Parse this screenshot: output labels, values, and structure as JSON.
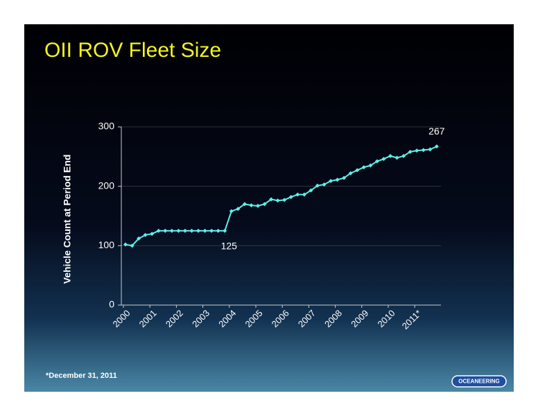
{
  "chart_data": {
    "type": "line",
    "title": "OII ROV Fleet Size",
    "y_label": "Vehicle Count at Period End",
    "footnote": "*December 31, 2011",
    "logo": "OCEANEERING",
    "categories": [
      "2000",
      null,
      null,
      null,
      "2001",
      null,
      null,
      null,
      "2002",
      null,
      null,
      null,
      "2003",
      null,
      null,
      null,
      "2004",
      null,
      null,
      null,
      "2005",
      null,
      null,
      null,
      "2006",
      null,
      null,
      null,
      "2007",
      null,
      null,
      null,
      "2008",
      null,
      null,
      null,
      "2009",
      null,
      null,
      null,
      "2010",
      null,
      null,
      null,
      "2011*",
      null,
      null,
      null
    ],
    "series": [
      {
        "name": "ROV Fleet",
        "color": "#5ff0e8",
        "values": [
          102,
          100,
          112,
          118,
          120,
          125,
          125,
          125,
          125,
          125,
          125,
          125,
          125,
          125,
          125,
          125,
          158,
          162,
          170,
          168,
          167,
          170,
          178,
          176,
          177,
          182,
          186,
          186,
          193,
          201,
          203,
          209,
          211,
          214,
          222,
          227,
          232,
          235,
          242,
          246,
          251,
          248,
          251,
          258,
          260,
          261,
          262,
          267
        ],
        "value_labels": [
          null,
          null,
          null,
          null,
          null,
          null,
          null,
          null,
          null,
          null,
          null,
          null,
          null,
          null,
          null,
          "125",
          null,
          null,
          null,
          null,
          null,
          null,
          null,
          null,
          null,
          null,
          null,
          null,
          null,
          null,
          null,
          null,
          null,
          null,
          null,
          null,
          null,
          null,
          null,
          null,
          null,
          null,
          null,
          null,
          null,
          null,
          null,
          "267"
        ]
      }
    ],
    "ylim": [
      0,
      300
    ],
    "yticks": [
      0,
      100,
      200,
      300
    ],
    "grid": true
  }
}
